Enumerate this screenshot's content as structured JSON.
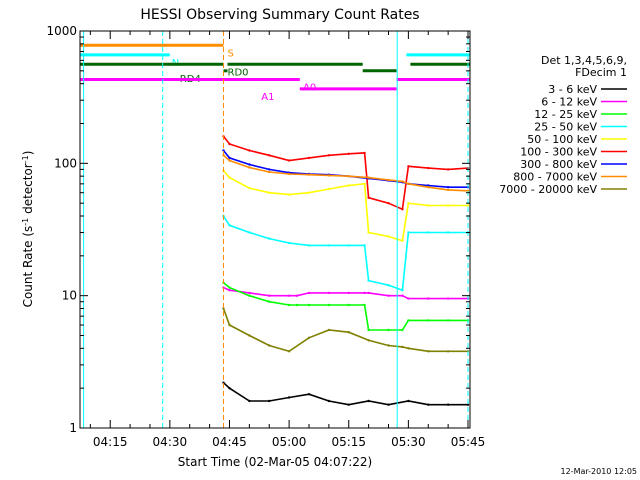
{
  "chart_data": {
    "type": "line",
    "title": "HESSI Observing Summary Count Rates",
    "xlabel": "Start Time (02-Mar-05 04:07:22)",
    "ylabel_main": "Count Rate (s",
    "ylabel_sup": "-1",
    "ylabel_mid": " detector",
    "ylabel_sup2": "-1",
    "ylabel_end": ")",
    "yscale": "log",
    "ylim": [
      1,
      1000
    ],
    "xlim_min": [
      247.4,
      345.5
    ],
    "x_unit": "minutes since 00:00 UT, 02-Mar-05",
    "x_ticks": [
      {
        "min": 255,
        "label": "04:15"
      },
      {
        "min": 270,
        "label": "04:30"
      },
      {
        "min": 285,
        "label": "04:45"
      },
      {
        "min": 300,
        "label": "05:00"
      },
      {
        "min": 315,
        "label": "05:15"
      },
      {
        "min": 330,
        "label": "05:30"
      },
      {
        "min": 345,
        "label": "05:45"
      }
    ],
    "y_ticks": [
      {
        "value": 1,
        "label": "1"
      },
      {
        "value": 10,
        "label": "10"
      },
      {
        "value": 100,
        "label": "100"
      },
      {
        "value": 1000,
        "label": "1000"
      }
    ],
    "legend": {
      "header": [
        "Det 1,3,4,5,6,9,",
        "FDecim 1"
      ],
      "placement": "right"
    },
    "series": [
      {
        "name": "3 - 6 keV",
        "color": "#000000",
        "x": [
          283.5,
          285,
          290,
          295,
          300,
          305,
          310,
          315,
          320,
          325,
          330,
          335,
          340,
          345
        ],
        "y": [
          2.2,
          2.0,
          1.6,
          1.6,
          1.7,
          1.8,
          1.6,
          1.5,
          1.6,
          1.5,
          1.6,
          1.5,
          1.5,
          1.5
        ]
      },
      {
        "name": "6 - 12 keV",
        "color": "#ff00ff",
        "x": [
          283.5,
          285,
          290,
          295,
          300,
          302,
          305,
          310,
          315,
          319,
          320,
          325,
          328.5,
          330,
          335,
          340,
          345
        ],
        "y": [
          11.5,
          11,
          10.5,
          10,
          10,
          10,
          10.5,
          10.5,
          10.5,
          10.5,
          10.5,
          10,
          10,
          9.5,
          9.5,
          9.5,
          9.5
        ]
      },
      {
        "name": "12 - 25 keV",
        "color": "#00ff00",
        "x": [
          283.5,
          285,
          290,
          295,
          300,
          302,
          305,
          310,
          315,
          319,
          320,
          325,
          328.5,
          330,
          335,
          340,
          345
        ],
        "y": [
          12.5,
          11.5,
          10,
          9,
          8.5,
          8.5,
          8.5,
          8.5,
          8.5,
          8.5,
          5.5,
          5.5,
          5.5,
          6.5,
          6.5,
          6.5,
          6.5
        ]
      },
      {
        "name": "25 - 50 keV",
        "color": "#00ffff",
        "x": [
          283.5,
          285,
          290,
          295,
          300,
          305,
          310,
          315,
          319,
          320,
          325,
          328.5,
          330,
          335,
          340,
          345
        ],
        "y": [
          40,
          34,
          30,
          27,
          25,
          24,
          24,
          24,
          24,
          13,
          12,
          11,
          30,
          30,
          30,
          30
        ]
      },
      {
        "name": "50 - 100 keV",
        "color": "#ffff00",
        "x": [
          283.5,
          285,
          290,
          295,
          300,
          305,
          310,
          315,
          319,
          320,
          325,
          328.5,
          330,
          335,
          340,
          345
        ],
        "y": [
          88,
          78,
          65,
          60,
          58,
          60,
          64,
          68,
          70,
          30,
          28,
          26,
          50,
          48,
          48,
          48
        ]
      },
      {
        "name": "100 - 300 keV",
        "color": "#ff0000",
        "x": [
          283.5,
          285,
          290,
          295,
          300,
          305,
          310,
          315,
          319,
          320,
          325,
          328.5,
          330,
          335,
          340,
          345
        ],
        "y": [
          160,
          140,
          125,
          115,
          105,
          110,
          115,
          118,
          120,
          55,
          50,
          45,
          95,
          92,
          90,
          92
        ]
      },
      {
        "name": "300 - 800 keV",
        "color": "#0000ff",
        "x": [
          283.5,
          285,
          290,
          295,
          300,
          305,
          310,
          315,
          320,
          325,
          328.5,
          330,
          335,
          340,
          345
        ],
        "y": [
          125,
          110,
          98,
          90,
          85,
          83,
          82,
          80,
          77,
          74,
          72,
          70,
          68,
          66,
          66
        ]
      },
      {
        "name": "800 - 7000 keV",
        "color": "#ff8c00",
        "x": [
          283.5,
          285,
          290,
          295,
          300,
          305,
          310,
          315,
          320,
          325,
          328.5,
          330,
          335,
          340,
          345
        ],
        "y": [
          115,
          105,
          93,
          86,
          83,
          82,
          81,
          80,
          78,
          75,
          73,
          70,
          66,
          63,
          62
        ]
      },
      {
        "name": "7000 - 20000 keV",
        "color": "#808000",
        "x": [
          283.5,
          285,
          290,
          295,
          300,
          305,
          310,
          315,
          320,
          325,
          328.5,
          330,
          335,
          340,
          345
        ],
        "y": [
          8,
          6,
          5,
          4.2,
          3.8,
          4.8,
          5.5,
          5.3,
          4.6,
          4.2,
          4.1,
          4.0,
          3.8,
          3.8,
          3.8
        ]
      }
    ],
    "state_bars": [
      {
        "label": "S",
        "color": "#ff8c00",
        "value": 780,
        "segments": [
          [
            247.4,
            283.5
          ]
        ],
        "label_at": 284.5
      },
      {
        "label": "N",
        "color": "#00ffff",
        "value": 660,
        "segments": [
          [
            247.4,
            270
          ],
          [
            329.5,
            345.5
          ]
        ],
        "label_at": 270.5
      },
      {
        "label": "RD0",
        "color": "#006400",
        "value": 560,
        "segments": [
          [
            247.4,
            283.5
          ],
          [
            284.5,
            318.5
          ],
          [
            330.5,
            345.5
          ]
        ],
        "label_at": 284.5
      },
      {
        "label": "RD4",
        "color": "#006400",
        "value": 500,
        "segments": [
          [
            283.5,
            284.5
          ],
          [
            318.5,
            327
          ]
        ],
        "label_at": 272.5
      },
      {
        "label": "A0",
        "color": "#ff00ff",
        "value": 430,
        "segments": [
          [
            247.4,
            302.7
          ],
          [
            327,
            345.5
          ]
        ],
        "label_at": 303.5
      },
      {
        "label": "A1",
        "color": "#ff00ff",
        "value": 365,
        "segments": [
          [
            302.7,
            327
          ]
        ],
        "label_at": 293
      }
    ],
    "vlines": [
      {
        "x": 248.3,
        "color": "#00ffff",
        "style": "solid"
      },
      {
        "x": 268.2,
        "color": "#00ffff",
        "style": "dashed"
      },
      {
        "x": 283.5,
        "color": "#ff8c00",
        "style": "dashed"
      },
      {
        "x": 327.2,
        "color": "#00ffff",
        "style": "solid"
      },
      {
        "x": 345.0,
        "color": "#00ffff",
        "style": "dashed"
      }
    ],
    "timestamp": "12-Mar-2010 12:05"
  }
}
